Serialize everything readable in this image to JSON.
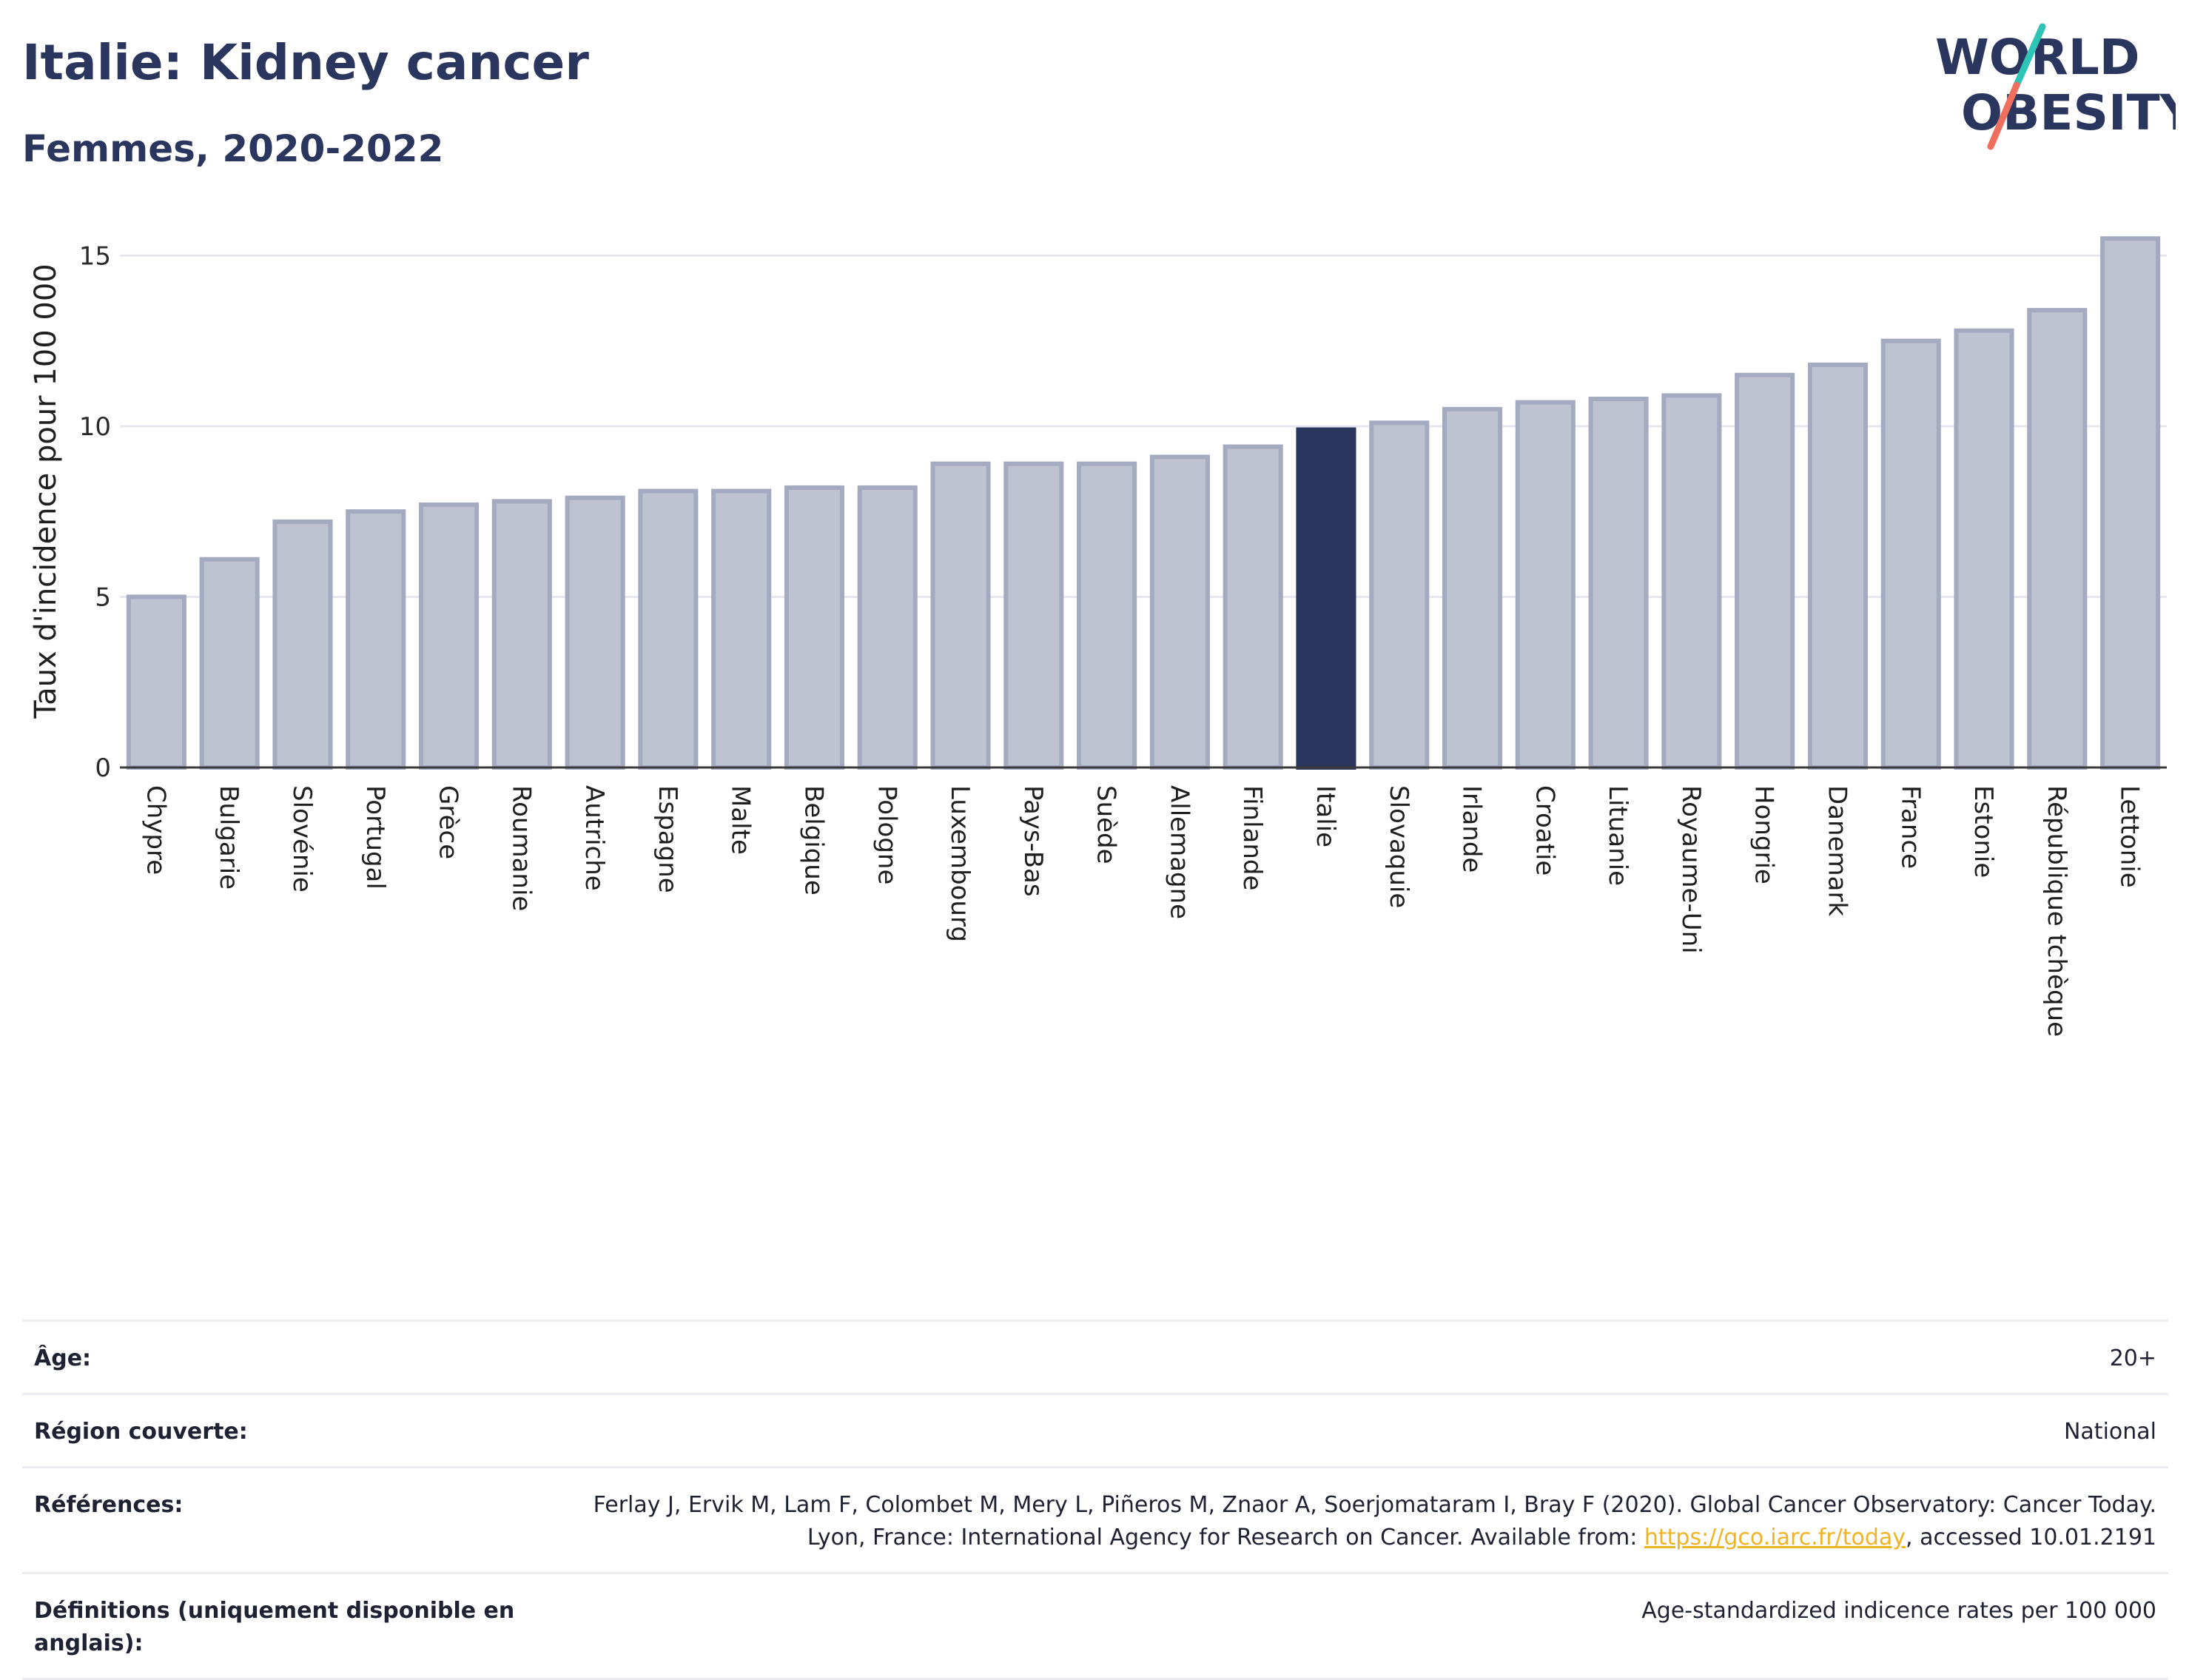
{
  "header": {
    "title": "Italie: Kidney cancer",
    "subtitle": "Femmes, 2020-2022"
  },
  "logo": {
    "line1": "WORLD",
    "line2": "OBESITY"
  },
  "colors": {
    "highlight": "#2b365f",
    "bar_fill": "#bfc3d1",
    "bar_stroke": "#a4aac0",
    "grid": "#e6e7ee",
    "text": "#2b365f",
    "link": "#f0b323",
    "logo_slash_top": "#2ec4b6",
    "logo_slash_bottom": "#ef6f5e"
  },
  "chart_data": {
    "type": "bar",
    "ylabel": "Taux d'incidence pour 100 000",
    "ylim": [
      0,
      16.2
    ],
    "yticks": [
      0,
      5,
      10,
      15
    ],
    "grid": true,
    "highlight": "Italie",
    "categories": [
      "Chypre",
      "Bulgarie",
      "Slovénie",
      "Portugal",
      "Grèce",
      "Roumanie",
      "Autriche",
      "Espagne",
      "Malte",
      "Belgique",
      "Pologne",
      "Luxembourg",
      "Pays-Bas",
      "Suède",
      "Allemagne",
      "Finlande",
      "Italie",
      "Slovaquie",
      "Irlande",
      "Croatie",
      "Lituanie",
      "Royaume-Uni",
      "Hongrie",
      "Danemark",
      "France",
      "Estonie",
      "République tchèque",
      "Lettonie"
    ],
    "values": [
      5.0,
      6.1,
      7.2,
      7.5,
      7.7,
      7.8,
      7.9,
      8.1,
      8.1,
      8.2,
      8.2,
      8.9,
      8.9,
      8.9,
      9.1,
      9.4,
      9.9,
      10.1,
      10.5,
      10.7,
      10.8,
      10.9,
      11.5,
      11.8,
      12.5,
      12.8,
      13.4,
      15.5
    ]
  },
  "info": [
    {
      "label": "Âge:",
      "value": "20+"
    },
    {
      "label": "Région couverte:",
      "value": "National"
    },
    {
      "label": "Références:",
      "value_pre": "Ferlay J, Ervik M, Lam F, Colombet M, Mery L, Piñeros M, Znaor A, Soerjomataram I, Bray F (2020). Global Cancer Observatory: Cancer Today. Lyon, France: International Agency for Research on Cancer. Available from: ",
      "link_text": "https://gco.iarc.fr/today",
      "value_post": ", accessed 10.01.2191"
    },
    {
      "label": "Définitions (uniquement disponible en anglais):",
      "value": "Age-standardized indicence rates per 100 000"
    }
  ]
}
